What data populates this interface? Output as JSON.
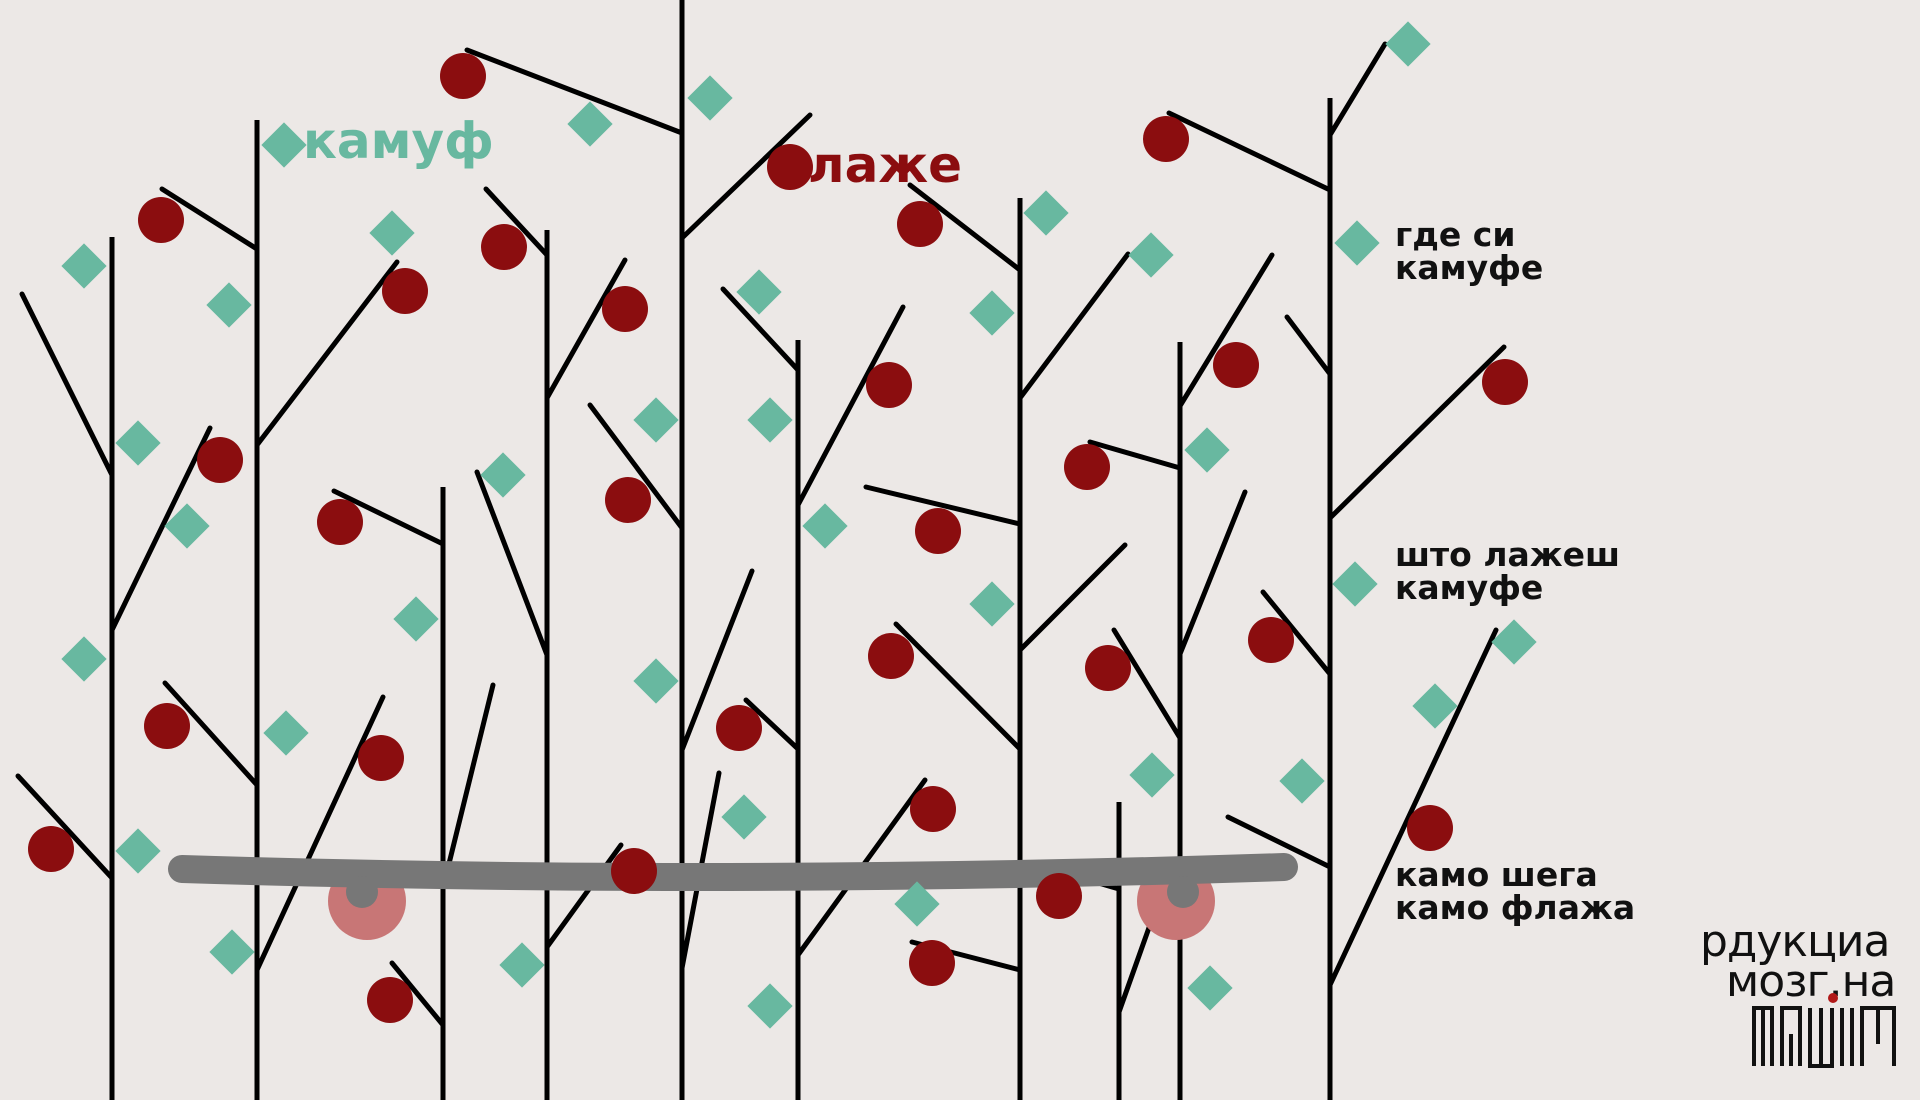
{
  "labels": {
    "camouflage": "камуф",
    "lie": "лаже"
  },
  "notes": [
    {
      "line1": "где си",
      "line2": "камуфе"
    },
    {
      "line1": "што лажеш",
      "line2": "камуфе"
    },
    {
      "line1": "камо шега",
      "line2": "камо флажа"
    }
  ],
  "logo": {
    "line1": "рдукциа",
    "line2": "мозг.на"
  },
  "colors": {
    "background": "#ece8e6",
    "branch": "#000000",
    "berry": "#8b0d0f",
    "leaf": "#68b8a0",
    "board": "#777777",
    "wheel": "#c87676",
    "camouflage_text": "#68b8a0",
    "lie_text": "#8b0d0f"
  }
}
